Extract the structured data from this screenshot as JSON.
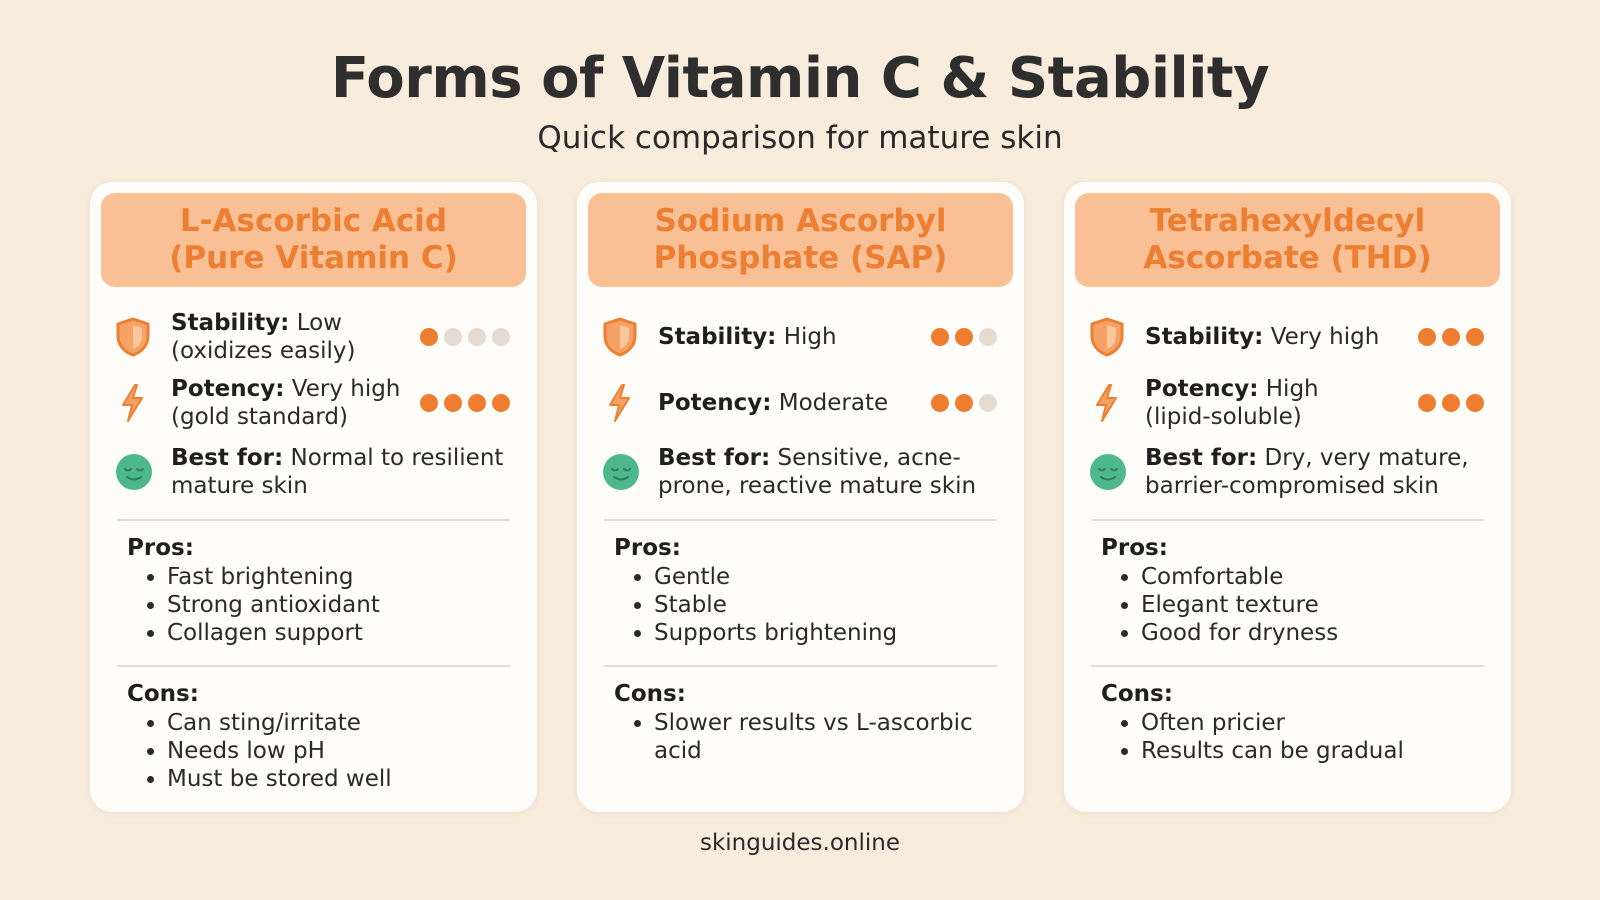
{
  "title": "Forms of Vitamin C & Stability",
  "subtitle": "Quick comparison for mature skin",
  "footer": "skinguides.online",
  "colors": {
    "accent": "#ef7d30",
    "header_bg": "#f9bf95",
    "dot_off": "#e6dbd0",
    "smile": "#4db88a",
    "background": "#f8ecdd"
  },
  "cards": [
    {
      "header": [
        "L-Ascorbic Acid",
        "(Pure Vitamin C)"
      ],
      "stability": {
        "label": "Stability:",
        "value": "Low",
        "detail": "(oxidizes easily)",
        "dots_on": 1,
        "dots_total": 4
      },
      "potency": {
        "label": "Potency:",
        "value": "Very high",
        "detail": "(gold standard)",
        "dots_on": 4,
        "dots_total": 4
      },
      "best": {
        "label": "Best for:",
        "value": "Normal to resilient",
        "detail": "mature skin"
      },
      "pros_label": "Pros:",
      "pros": [
        "Fast brightening",
        "Strong antioxidant",
        "Collagen support"
      ],
      "cons_label": "Cons:",
      "cons": [
        "Can sting/irritate",
        "Needs low pH",
        "Must be stored well"
      ]
    },
    {
      "header": [
        "Sodium Ascorbyl",
        "Phosphate (SAP)"
      ],
      "stability": {
        "label": "Stability:",
        "value": "High",
        "detail": "",
        "dots_on": 2,
        "dots_total": 3
      },
      "potency": {
        "label": "Potency:",
        "value": "Moderate",
        "detail": "",
        "dots_on": 2,
        "dots_total": 3
      },
      "best": {
        "label": "Best for:",
        "value": "Sensitive, acne-",
        "detail": "prone, reactive mature skin"
      },
      "pros_label": "Pros:",
      "pros": [
        "Gentle",
        "Stable",
        "Supports brightening"
      ],
      "cons_label": "Cons:",
      "cons": [
        "Slower results vs L-ascorbic acid"
      ]
    },
    {
      "header": [
        "Tetrahexyldecyl",
        "Ascorbate (THD)"
      ],
      "stability": {
        "label": "Stability:",
        "value": "Very high",
        "detail": "",
        "dots_on": 3,
        "dots_total": 3
      },
      "potency": {
        "label": "Potency:",
        "value": "High",
        "detail": "(lipid-soluble)",
        "dots_on": 3,
        "dots_total": 3
      },
      "best": {
        "label": "Best for:",
        "value": "Dry, very mature,",
        "detail": "barrier-compromised skin"
      },
      "pros_label": "Pros:",
      "pros": [
        "Comfortable",
        "Elegant texture",
        "Good for dryness"
      ],
      "cons_label": "Cons:",
      "cons": [
        "Often pricier",
        "Results can be gradual"
      ]
    }
  ]
}
